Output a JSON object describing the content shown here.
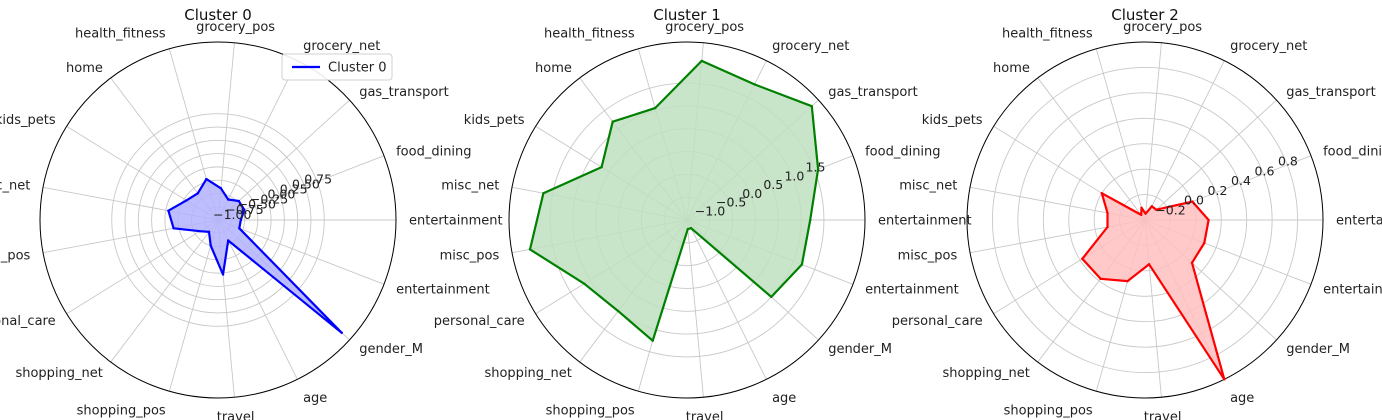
{
  "chart_data": [
    {
      "type": "radar",
      "title": "Cluster 0",
      "color": "#0000ff",
      "fill": "#b3b3ff",
      "categories": [
        "entertainment",
        "food_dining",
        "gas_transport",
        "grocery_net",
        "grocery_pos",
        "health_fitness",
        "home",
        "kids_pets",
        "misc_net",
        "misc_pos",
        "personal_care",
        "shopping_net",
        "shopping_pos",
        "travel",
        "age",
        "gender_M",
        "entertainment"
      ],
      "series": [
        {
          "name": "Cluster 0",
          "values": [
            -0.82,
            -0.72,
            -0.72,
            -0.82,
            -0.65,
            -0.45,
            -0.62,
            -0.55,
            -0.3,
            -0.4,
            -0.85,
            -0.97,
            -0.75,
            -0.22,
            -0.82,
            1.9,
            -0.82
          ]
        }
      ],
      "rlim": [
        -1.25,
        2.1
      ],
      "radial_ticks": [
        -1.0,
        -0.75,
        -0.5,
        -0.25,
        0.0,
        0.25,
        0.5,
        0.75
      ],
      "radial_tick_labels": [
        "−1.00",
        "−0.75",
        "−0.50",
        "−0.25",
        "0.00",
        "0.25",
        "0.50",
        "0.75"
      ],
      "legend": {
        "position": "top-right",
        "entries": [
          "Cluster 0"
        ]
      },
      "grid": true
    },
    {
      "type": "radar",
      "title": "Cluster 1",
      "color": "#008000",
      "fill": "#bfe0bf",
      "categories": [
        "entertainment",
        "food_dining",
        "gas_transport",
        "grocery_net",
        "grocery_pos",
        "health_fitness",
        "home",
        "kids_pets",
        "misc_net",
        "misc_pos",
        "personal_care",
        "shopping_net",
        "shopping_pos",
        "travel",
        "age",
        "gender_M",
        "entertainment"
      ],
      "series": [
        {
          "name": "Cluster 1",
          "values": [
            1.2,
            1.58,
            2.2,
            1.82,
            2.0,
            1.05,
            1.2,
            0.7,
            1.7,
            2.0,
            1.15,
            1.0,
            1.25,
            -1.3,
            -1.3,
            1.0,
            1.2
          ]
        }
      ],
      "rlim": [
        -1.5,
        2.4
      ],
      "radial_ticks": [
        -1.0,
        -0.5,
        0.0,
        0.5,
        1.0,
        1.5
      ],
      "radial_tick_labels": [
        "−1.0",
        "−0.5",
        "0.0",
        "0.5",
        "1.0",
        "1.5"
      ],
      "grid": true
    },
    {
      "type": "radar",
      "title": "Cluster 2",
      "color": "#ff0000",
      "fill": "#ffbfbf",
      "categories": [
        "entertainment",
        "food_dining",
        "gas_transport",
        "grocery_net",
        "grocery_pos",
        "health_fitness",
        "home",
        "kids_pets",
        "misc_net",
        "misc_pos",
        "personal_care",
        "shopping_net",
        "shopping_pos",
        "travel",
        "age",
        "gender_M",
        "entertainment"
      ],
      "series": [
        {
          "name": "Cluster 2",
          "values": [
            0.1,
            0.0,
            -0.28,
            -0.28,
            -0.35,
            -0.3,
            -0.35,
            0.0,
            -0.1,
            -0.1,
            0.18,
            0.18,
            0.1,
            -0.05,
            1.0,
            0.1,
            0.1
          ]
        }
      ],
      "rlim": [
        -0.4,
        1.0
      ],
      "radial_ticks": [
        -0.2,
        0.0,
        0.2,
        0.4,
        0.6,
        0.8
      ],
      "radial_tick_labels": [
        "−0.2",
        "0.0",
        "0.2",
        "0.4",
        "0.6",
        "0.8"
      ],
      "grid": true
    }
  ]
}
